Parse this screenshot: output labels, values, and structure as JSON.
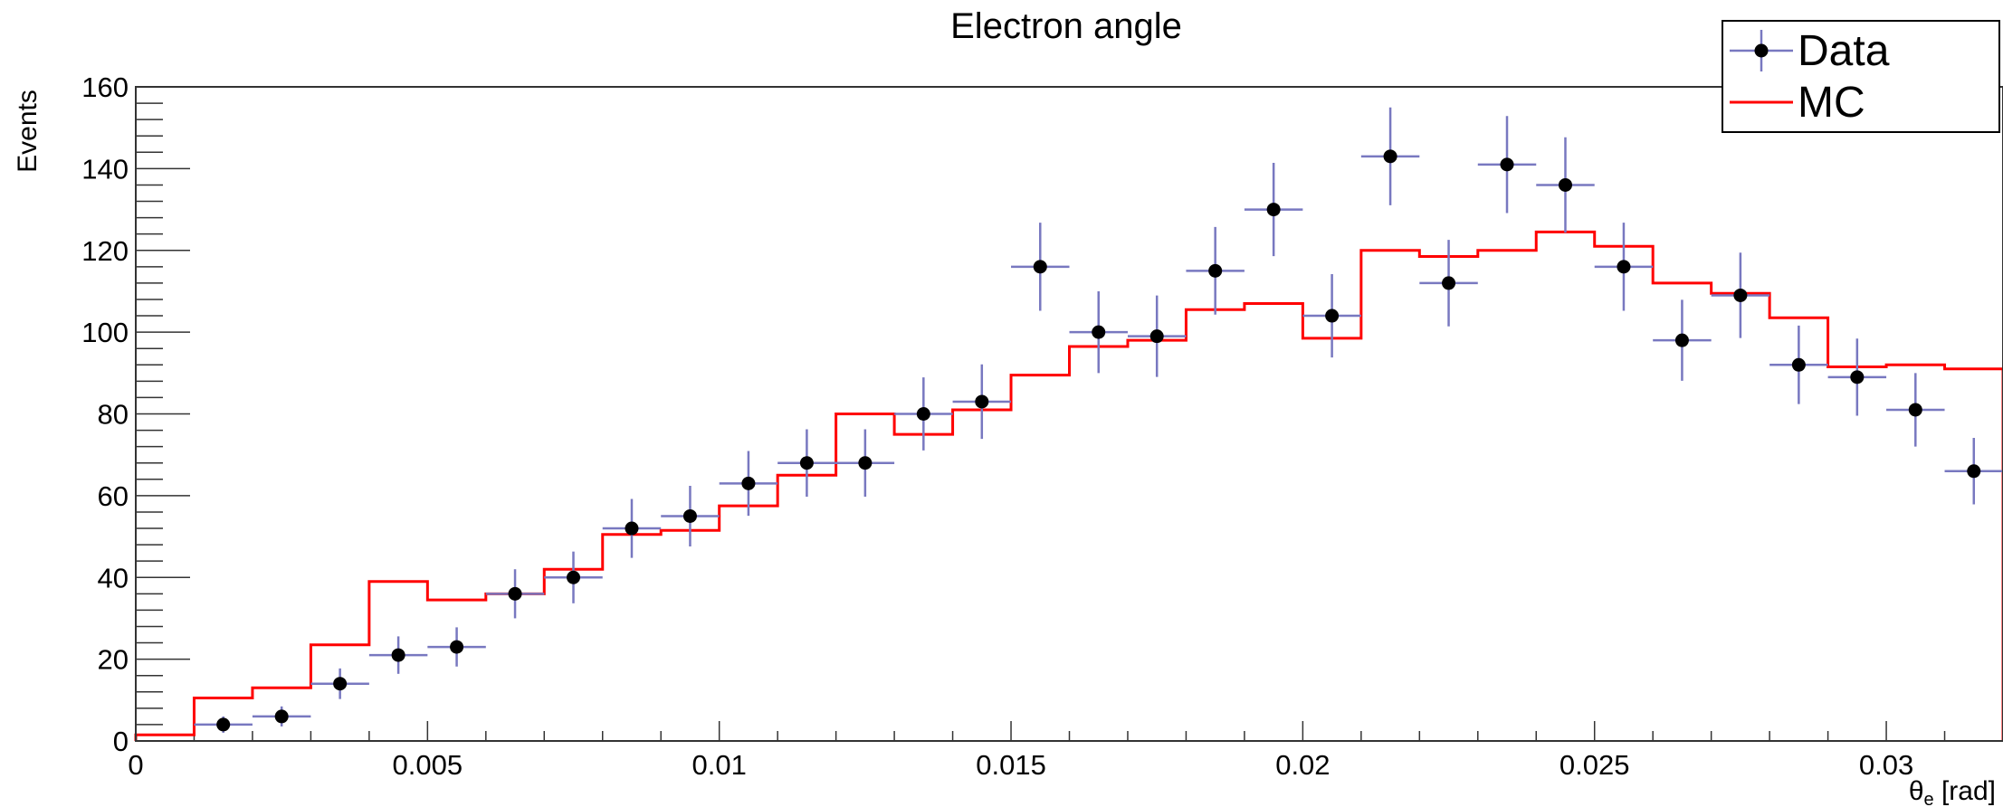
{
  "chart_data": {
    "type": "histogram",
    "title": "Electron angle",
    "xlabel": "θe [rad]",
    "xlabel_main": "θ",
    "xlabel_sub": "e",
    "xlabel_unit": " [rad]",
    "ylabel": "Events",
    "xlim": [
      0,
      0.032
    ],
    "ylim": [
      0,
      160
    ],
    "x_ticks": [
      {
        "value": 0,
        "label": "0"
      },
      {
        "value": 0.005,
        "label": "0.005"
      },
      {
        "value": 0.01,
        "label": "0.01"
      },
      {
        "value": 0.015,
        "label": "0.015"
      },
      {
        "value": 0.02,
        "label": "0.02"
      },
      {
        "value": 0.025,
        "label": "0.025"
      },
      {
        "value": 0.03,
        "label": "0.03"
      }
    ],
    "y_ticks": [
      {
        "value": 0,
        "label": "0"
      },
      {
        "value": 20,
        "label": "20"
      },
      {
        "value": 40,
        "label": "40"
      },
      {
        "value": 60,
        "label": "60"
      },
      {
        "value": 80,
        "label": "80"
      },
      {
        "value": 100,
        "label": "100"
      },
      {
        "value": 120,
        "label": "120"
      },
      {
        "value": 140,
        "label": "140"
      },
      {
        "value": 160,
        "label": "160"
      }
    ],
    "bin_edges": [
      0,
      0.001,
      0.002,
      0.003,
      0.004,
      0.005,
      0.006,
      0.007,
      0.008,
      0.009,
      0.01,
      0.011,
      0.012,
      0.013,
      0.014,
      0.015,
      0.016,
      0.017,
      0.018,
      0.019,
      0.02,
      0.021,
      0.022,
      0.023,
      0.024,
      0.025,
      0.026,
      0.027,
      0.028,
      0.029,
      0.03,
      0.031,
      0.032
    ],
    "series": [
      {
        "name": "Data",
        "kind": "points_with_errors",
        "color": "#7878c0",
        "marker_color": "#000000",
        "values": [
          0,
          4,
          6,
          14,
          21,
          23,
          36,
          40,
          52,
          55,
          63,
          68,
          68,
          80,
          83,
          116,
          100,
          99,
          115,
          130,
          104,
          143,
          112,
          141,
          136,
          116,
          98,
          109,
          92,
          89,
          81,
          66
        ]
      },
      {
        "name": "MC",
        "kind": "step",
        "color": "#ff0000",
        "values": [
          1.5,
          10.5,
          13,
          23.5,
          39,
          34.5,
          36,
          42,
          50.5,
          51.5,
          57.5,
          65,
          80,
          75,
          81,
          89.5,
          96.5,
          98,
          105.5,
          107,
          98.5,
          120,
          118.5,
          120,
          124.5,
          121,
          112,
          109.5,
          103.5,
          91.5,
          92,
          91
        ]
      }
    ],
    "legend_position": "top-right"
  },
  "colors": {
    "frame": "#333333",
    "data_error": "#7878c0",
    "data_marker": "#000000",
    "mc_line": "#ff0000"
  }
}
